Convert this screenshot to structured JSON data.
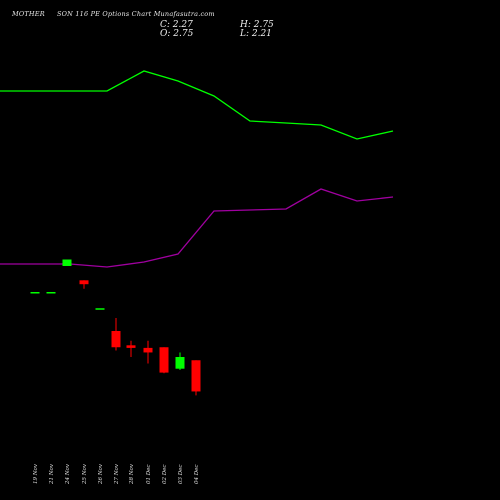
{
  "header": {
    "symbol": "MOTHER",
    "title_rest": "SON 116 PE Options Chart Munafasutra.com",
    "close_label": "C: 2.27",
    "high_label": "H: 2.75",
    "open_label": "O: 2.75",
    "low_label": "L: 2.21"
  },
  "chart_data": {
    "type": "candlestick",
    "background": "#000000",
    "up_color": "#00ff00",
    "down_color": "#ff0000",
    "dates": [
      "19 Nov",
      "21 Nov",
      "24 Nov",
      "25 Nov",
      "26 Nov",
      "27 Nov",
      "28 Nov",
      "01 Dec",
      "02 Dec",
      "03 Dec",
      "04 Dec"
    ],
    "candles": [
      {
        "date": "19 Nov",
        "open": 3.8,
        "high": 3.8,
        "low": 3.8,
        "close": 3.8
      },
      {
        "date": "21 Nov",
        "open": 3.8,
        "high": 3.8,
        "low": 3.8,
        "close": 3.8
      },
      {
        "date": "24 Nov",
        "open": 4.2,
        "high": 4.3,
        "low": 4.2,
        "close": 4.3
      },
      {
        "date": "25 Nov",
        "open": 3.98,
        "high": 3.98,
        "low": 3.85,
        "close": 3.92
      },
      {
        "date": "26 Nov",
        "open": 3.55,
        "high": 3.55,
        "low": 3.55,
        "close": 3.55
      },
      {
        "date": "27 Nov",
        "open": 3.2,
        "high": 3.4,
        "low": 2.9,
        "close": 2.95
      },
      {
        "date": "28 Nov",
        "open": 2.98,
        "high": 3.05,
        "low": 2.8,
        "close": 2.94
      },
      {
        "date": "01 Dec",
        "open": 2.94,
        "high": 3.05,
        "low": 2.7,
        "close": 2.87
      },
      {
        "date": "02 Dec",
        "open": 2.95,
        "high": 2.95,
        "low": 2.55,
        "close": 2.56
      },
      {
        "date": "03 Dec",
        "open": 2.62,
        "high": 2.87,
        "low": 2.6,
        "close": 2.8
      },
      {
        "date": "04 Dec",
        "open": 2.75,
        "high": 2.75,
        "low": 2.21,
        "close": 2.27
      }
    ],
    "series": [
      {
        "color": "#00ff00",
        "values": [
          6.8,
          6.8,
          6.8,
          7.0,
          6.9,
          6.75,
          6.5,
          6.48,
          6.46,
          6.32,
          6.4
        ]
      },
      {
        "color": "#a000a0",
        "values": [
          5.07,
          5.07,
          5.04,
          5.09,
          5.17,
          5.6,
          5.61,
          5.62,
          5.82,
          5.7,
          5.74
        ]
      }
    ]
  }
}
